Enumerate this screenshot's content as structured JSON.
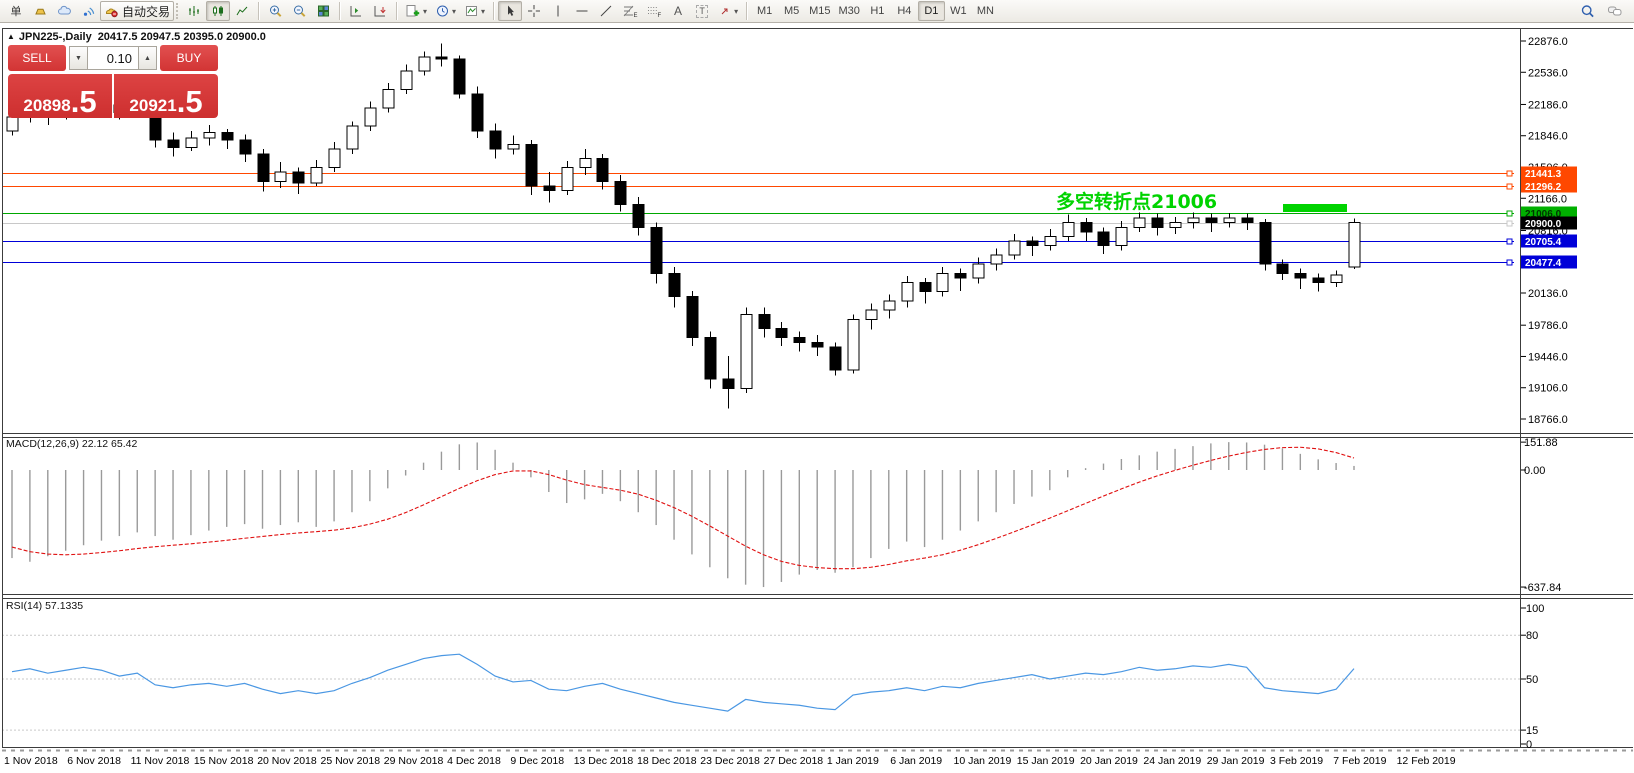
{
  "toolbar": {
    "new_order_label": "单",
    "auto_trading_label": "自动交易",
    "text_tool": "A",
    "label_tool": "T",
    "timeframes": [
      "M1",
      "M5",
      "M15",
      "M30",
      "H1",
      "H4",
      "D1",
      "W1",
      "MN"
    ],
    "active_timeframe": "D1"
  },
  "chart": {
    "symbol": "JPN225-",
    "timeframe": "Daily",
    "title": "JPN225-,Daily",
    "ohlc": "20417.5 20947.5 20395.0 20900.0"
  },
  "trade_panel": {
    "sell_label": "SELL",
    "buy_label": "BUY",
    "volume": "0.10",
    "bid_main": "20898",
    "bid_pip": ".5",
    "ask_main": "20921",
    "ask_pip": ".5"
  },
  "annotation": {
    "text": "多空转折点21006",
    "color": "#00d300"
  },
  "price_lines": [
    {
      "label": "21441.3",
      "value": 21441.3,
      "line_color": "#ff4800",
      "tag_bg": "#ff4800",
      "tag_text": "#ffffff"
    },
    {
      "label": "21296.2",
      "value": 21296.2,
      "line_color": "#ff4800",
      "tag_bg": "#ff4800",
      "tag_text": "#ffffff"
    },
    {
      "label": "21006.0",
      "value": 21006.0,
      "line_color": "#00a800",
      "tag_bg": "#00b000",
      "tag_text": "#003300"
    },
    {
      "label": "20900.0",
      "value": 20900.0,
      "line_color": "#c8c8c8",
      "tag_bg": "#000000",
      "tag_text": "#ffffff"
    },
    {
      "label": "20705.4",
      "value": 20705.4,
      "line_color": "#0000d8",
      "tag_bg": "#0000d8",
      "tag_text": "#ffffff"
    },
    {
      "label": "20477.4",
      "value": 20477.4,
      "line_color": "#0000d8",
      "tag_bg": "#0000d8",
      "tag_text": "#ffffff"
    }
  ],
  "chart_data": [
    {
      "type": "candlestick",
      "title": "JPN225-,Daily",
      "current_open": 20417.5,
      "current_high": 20947.5,
      "current_low": 20395.0,
      "current_close": 20900.0,
      "ylim": [
        18766,
        22876
      ],
      "y_ticks": [
        22876,
        22536,
        22186,
        21846,
        21506,
        21166,
        20816,
        20136,
        19786,
        19446,
        19106,
        18766
      ],
      "x_labels": [
        "1 Nov 2018",
        "6 Nov 2018",
        "11 Nov 2018",
        "15 Nov 2018",
        "20 Nov 2018",
        "25 Nov 2018",
        "29 Nov 2018",
        "4 Dec 2018",
        "9 Dec 2018",
        "13 Dec 2018",
        "18 Dec 2018",
        "23 Dec 2018",
        "27 Dec 2018",
        "1 Jan 2019",
        "6 Jan 2019",
        "10 Jan 2019",
        "15 Jan 2019",
        "20 Jan 2019",
        "24 Jan 2019",
        "29 Jan 2019",
        "3 Feb 2019",
        "7 Feb 2019",
        "12 Feb 2019"
      ],
      "candles": [
        [
          21900,
          22120,
          21850,
          22050
        ],
        [
          22050,
          22230,
          21990,
          22150
        ],
        [
          22150,
          22200,
          21960,
          22080
        ],
        [
          22080,
          22260,
          22020,
          22150
        ],
        [
          22150,
          22320,
          22080,
          22250
        ],
        [
          22250,
          22300,
          22100,
          22180
        ],
        [
          22180,
          22280,
          22020,
          22100
        ],
        [
          22100,
          22240,
          22050,
          22150
        ],
        [
          22150,
          22200,
          21720,
          21800
        ],
        [
          21800,
          21880,
          21620,
          21720
        ],
        [
          21720,
          21900,
          21680,
          21820
        ],
        [
          21820,
          21960,
          21740,
          21880
        ],
        [
          21880,
          21920,
          21700,
          21800
        ],
        [
          21800,
          21860,
          21560,
          21650
        ],
        [
          21650,
          21700,
          21240,
          21350
        ],
        [
          21350,
          21560,
          21280,
          21450
        ],
        [
          21450,
          21500,
          21210,
          21330
        ],
        [
          21330,
          21580,
          21300,
          21500
        ],
        [
          21500,
          21780,
          21450,
          21700
        ],
        [
          21700,
          22000,
          21650,
          21950
        ],
        [
          21950,
          22220,
          21900,
          22150
        ],
        [
          22150,
          22420,
          22100,
          22350
        ],
        [
          22350,
          22620,
          22300,
          22550
        ],
        [
          22550,
          22760,
          22500,
          22700
        ],
        [
          22700,
          22850,
          22600,
          22680
        ],
        [
          22680,
          22720,
          22250,
          22300
        ],
        [
          22300,
          22380,
          21820,
          21900
        ],
        [
          21900,
          21980,
          21600,
          21700
        ],
        [
          21700,
          21850,
          21640,
          21750
        ],
        [
          21750,
          21800,
          21200,
          21300
        ],
        [
          21300,
          21450,
          21120,
          21250
        ],
        [
          21250,
          21570,
          21200,
          21500
        ],
        [
          21500,
          21700,
          21420,
          21600
        ],
        [
          21600,
          21650,
          21260,
          21350
        ],
        [
          21350,
          21420,
          21020,
          21100
        ],
        [
          21100,
          21180,
          20760,
          20850
        ],
        [
          20850,
          20900,
          20240,
          20350
        ],
        [
          20350,
          20420,
          19980,
          20100
        ],
        [
          20100,
          20160,
          19560,
          19650
        ],
        [
          19650,
          19720,
          19100,
          19200
        ],
        [
          19200,
          19450,
          18880,
          19100
        ],
        [
          19100,
          19980,
          19050,
          19900
        ],
        [
          19900,
          19980,
          19650,
          19750
        ],
        [
          19750,
          19820,
          19560,
          19650
        ],
        [
          19650,
          19720,
          19500,
          19600
        ],
        [
          19600,
          19680,
          19450,
          19550
        ],
        [
          19550,
          19600,
          19240,
          19300
        ],
        [
          19300,
          19900,
          19260,
          19850
        ],
        [
          19850,
          20020,
          19740,
          19950
        ],
        [
          19950,
          20120,
          19860,
          20050
        ],
        [
          20050,
          20320,
          19980,
          20250
        ],
        [
          20250,
          20300,
          20020,
          20150
        ],
        [
          20150,
          20420,
          20100,
          20350
        ],
        [
          20350,
          20400,
          20160,
          20300
        ],
        [
          20300,
          20520,
          20240,
          20450
        ],
        [
          20450,
          20620,
          20380,
          20550
        ],
        [
          20550,
          20780,
          20500,
          20700
        ],
        [
          20700,
          20750,
          20540,
          20650
        ],
        [
          20650,
          20830,
          20600,
          20750
        ],
        [
          20750,
          20990,
          20700,
          20900
        ],
        [
          20900,
          20950,
          20700,
          20800
        ],
        [
          20800,
          20850,
          20560,
          20650
        ],
        [
          20650,
          20920,
          20600,
          20850
        ],
        [
          20850,
          21010,
          20800,
          20950
        ],
        [
          20950,
          21000,
          20760,
          20850
        ],
        [
          20850,
          20960,
          20780,
          20900
        ],
        [
          20900,
          21010,
          20840,
          20950
        ],
        [
          20950,
          21000,
          20800,
          20900
        ],
        [
          20900,
          21006,
          20850,
          20950
        ],
        [
          20950,
          21000,
          20820,
          20900
        ],
        [
          20900,
          20940,
          20380,
          20450
        ],
        [
          20450,
          20500,
          20280,
          20350
        ],
        [
          20350,
          20400,
          20180,
          20300
        ],
        [
          20300,
          20350,
          20150,
          20250
        ],
        [
          20250,
          20380,
          20200,
          20330
        ],
        [
          20417.5,
          20947.5,
          20395.0,
          20900.0
        ]
      ]
    },
    {
      "type": "bar",
      "name": "MACD",
      "params": "12,26,9",
      "label": "MACD(12,26,9) 22.12 65.42",
      "macd_current": 22.12,
      "signal_current": 65.42,
      "ylim": [
        -660,
        170
      ],
      "y_ticks": [
        151.88,
        0,
        -637.84
      ],
      "histogram_color": "#9a9a9a",
      "signal_color": "#e01010",
      "histogram": [
        -480,
        -500,
        -470,
        -440,
        -410,
        -385,
        -360,
        -340,
        -360,
        -380,
        -355,
        -330,
        -310,
        -295,
        -320,
        -300,
        -285,
        -310,
        -280,
        -230,
        -170,
        -100,
        -30,
        40,
        100,
        140,
        150,
        110,
        40,
        -40,
        -120,
        -180,
        -160,
        -130,
        -170,
        -230,
        -300,
        -380,
        -460,
        -530,
        -590,
        -625,
        -637.84,
        -610,
        -570,
        -545,
        -560,
        -530,
        -480,
        -430,
        -390,
        -420,
        -380,
        -330,
        -280,
        -230,
        -185,
        -145,
        -110,
        -40,
        10,
        35,
        60,
        80,
        100,
        115,
        130,
        145,
        151.88,
        150,
        138,
        118,
        88,
        58,
        38,
        22.12
      ],
      "signal": [
        -420,
        -445,
        -458,
        -462,
        -458,
        -450,
        -440,
        -428,
        -418,
        -410,
        -402,
        -393,
        -383,
        -372,
        -362,
        -352,
        -343,
        -336,
        -328,
        -315,
        -295,
        -268,
        -232,
        -190,
        -145,
        -100,
        -58,
        -25,
        -5,
        -5,
        -25,
        -55,
        -80,
        -95,
        -110,
        -132,
        -165,
        -205,
        -252,
        -305,
        -360,
        -415,
        -462,
        -498,
        -520,
        -532,
        -538,
        -538,
        -530,
        -515,
        -495,
        -480,
        -462,
        -437,
        -407,
        -373,
        -337,
        -300,
        -262,
        -222,
        -182,
        -142,
        -103,
        -66,
        -32,
        -2,
        26,
        52,
        76,
        96,
        112,
        122,
        124,
        115,
        95,
        65.42
      ]
    },
    {
      "type": "line",
      "name": "RSI",
      "params": "14",
      "label": "RSI(14) 57.1335",
      "current": 57.1335,
      "ylim": [
        0,
        100
      ],
      "levels": [
        80,
        50,
        15
      ],
      "y_ticks": [
        100,
        80,
        50,
        15,
        0
      ],
      "line_color": "#4a97e3",
      "values": [
        55,
        57,
        54,
        56,
        58,
        56,
        52,
        54,
        46,
        44,
        46,
        47,
        45,
        47,
        43,
        40,
        42,
        40,
        42,
        47,
        51,
        56,
        60,
        64,
        66,
        67,
        60,
        52,
        48,
        49,
        43,
        42,
        45,
        47,
        43,
        40,
        37,
        34,
        32,
        30,
        28,
        36,
        34,
        33,
        32,
        30,
        29,
        39,
        41,
        42,
        44,
        42,
        45,
        44,
        47,
        49,
        51,
        53,
        50,
        52,
        54,
        53,
        55,
        58,
        56,
        57,
        59,
        58,
        60,
        58,
        44,
        42,
        41,
        40,
        43,
        57.13
      ]
    }
  ]
}
